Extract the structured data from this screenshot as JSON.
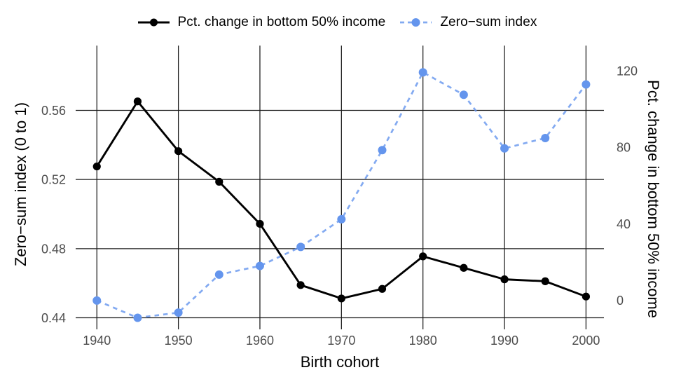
{
  "chart_data": {
    "type": "line",
    "title": "",
    "xlabel": "Birth cohort",
    "x": [
      1940,
      1945,
      1950,
      1955,
      1960,
      1965,
      1970,
      1975,
      1980,
      1985,
      1990,
      1995,
      2000
    ],
    "x_ticks": [
      1940,
      1950,
      1960,
      1970,
      1980,
      1990,
      2000
    ],
    "x_range": [
      1937.4,
      2002.2
    ],
    "left_axis": {
      "label": "Zero−sum index (0 to 1)",
      "ticks": [
        0.44,
        0.48,
        0.52,
        0.56
      ],
      "range": [
        0.44,
        0.5975
      ]
    },
    "right_axis": {
      "label": "Pct. change in bottom 50% income",
      "ticks": [
        0,
        40,
        80,
        120
      ],
      "range": [
        -9.1,
        133.2
      ]
    },
    "series": [
      {
        "name": "Pct. change in bottom 50% income",
        "axis": "right",
        "color": "#000000",
        "line_style": "solid",
        "marker": "circle",
        "values": [
          70,
          104,
          78,
          62,
          40,
          8,
          1,
          6,
          23,
          17,
          11,
          10,
          2
        ]
      },
      {
        "name": "Zero−sum index",
        "axis": "left",
        "color": "#6495ED",
        "line_style": "dashed",
        "marker": "circle",
        "values": [
          0.45,
          0.44,
          0.443,
          0.465,
          0.47,
          0.481,
          0.497,
          0.537,
          0.582,
          0.569,
          0.538,
          0.544,
          0.575
        ]
      }
    ],
    "grid": true,
    "legend_position": "top",
    "colors": {
      "gridline": "#1a1a1a",
      "tick_labels": "#4d4d4d",
      "axis_titles": "#000000",
      "background": "#ffffff"
    }
  }
}
